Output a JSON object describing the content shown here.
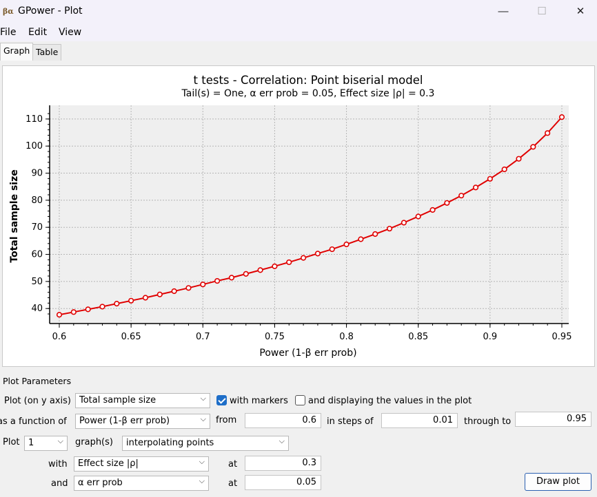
{
  "window": {
    "app_icon": "βα",
    "title": "GPower - Plot",
    "min_glyph": "—",
    "max_glyph": "☐",
    "close_glyph": "✕"
  },
  "menu": [
    "File",
    "Edit",
    "View"
  ],
  "tabs": [
    {
      "label": "Graph",
      "active": true
    },
    {
      "label": "Table",
      "active": false
    }
  ],
  "chart_data": {
    "type": "line",
    "title": "t tests - Correlation: Point biserial model",
    "subtitle": "Tail(s) = One, α err prob = 0.05, Effect size |ρ| = 0.3",
    "xlabel": "Power (1-β err prob)",
    "ylabel": "Total sample size",
    "xlim": [
      0.6,
      0.95
    ],
    "ylim": [
      37,
      112
    ],
    "xticks": [
      0.6,
      0.65,
      0.7,
      0.75,
      0.8,
      0.85,
      0.9,
      0.95
    ],
    "xtick_labels": [
      "0.6",
      "0.65",
      "0.7",
      "0.75",
      "0.8",
      "0.85",
      "0.9",
      "0.95"
    ],
    "yticks": [
      40,
      50,
      60,
      70,
      80,
      90,
      100,
      110
    ],
    "ytick_labels": [
      "40",
      "50",
      "60",
      "70",
      "80",
      "90",
      "100",
      "110"
    ],
    "grid": true,
    "markers": true,
    "color": "#e00000",
    "series": [
      {
        "x": [
          0.6,
          0.61,
          0.62,
          0.63,
          0.64,
          0.65,
          0.66,
          0.67,
          0.68,
          0.69,
          0.7,
          0.71,
          0.72,
          0.73,
          0.74,
          0.75,
          0.76,
          0.77,
          0.78,
          0.79,
          0.8,
          0.81,
          0.82,
          0.83,
          0.84,
          0.85,
          0.86,
          0.87,
          0.88,
          0.89,
          0.9,
          0.91,
          0.92,
          0.93,
          0.94,
          0.95
        ],
        "values": [
          37.7,
          38.7,
          39.7,
          40.7,
          41.8,
          42.9,
          44.0,
          45.2,
          46.4,
          47.6,
          48.9,
          50.2,
          51.4,
          52.8,
          54.2,
          55.6,
          57.1,
          58.7,
          60.3,
          61.9,
          63.7,
          65.6,
          67.5,
          69.5,
          71.7,
          74.0,
          76.4,
          79.0,
          81.7,
          84.7,
          87.9,
          91.4,
          95.3,
          99.7,
          104.8,
          110.7
        ]
      }
    ]
  },
  "params": {
    "section_title": "Plot Parameters",
    "y_axis_label": "Plot (on y axis)",
    "y_axis_value": "Total sample size",
    "with_markers_label": "with markers",
    "with_markers_checked": true,
    "display_values_label": "and displaying the values in the plot",
    "display_values_checked": false,
    "function_of_label": "as a function of",
    "function_of_value": "Power (1-β err prob)",
    "from_label": "from",
    "from_value": "0.6",
    "steps_label": "in steps of",
    "steps_value": "0.01",
    "through_label": "through to",
    "through_value": "0.95",
    "plot_label": "Plot",
    "plot_count": "1",
    "graphs_label": "graph(s)",
    "graphs_mode": "interpolating points",
    "with_label": "with",
    "with_value": "Effect size |ρ|",
    "with_at_label": "at",
    "with_at_value": "0.3",
    "and_label": "and",
    "and_value": "α err prob",
    "and_at_label": "at",
    "and_at_value": "0.05",
    "draw_button": "Draw plot",
    "dropdown_glyph": "⌵"
  }
}
